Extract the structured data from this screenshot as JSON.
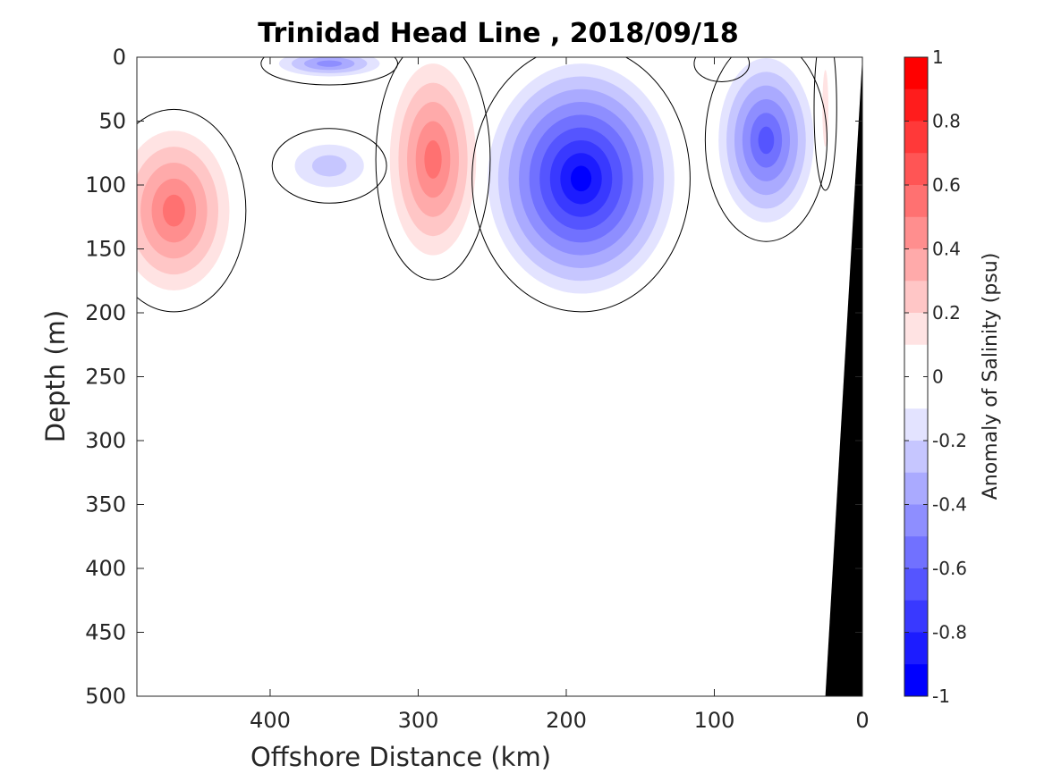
{
  "chart_data": {
    "type": "heatmap",
    "subtype": "filled-contour",
    "title": "Trinidad Head Line , 2018/09/18",
    "xlabel": "Offshore Distance (km)",
    "ylabel": "Depth (m)",
    "xlim": [
      490,
      0
    ],
    "ylim": [
      0,
      500
    ],
    "x_reversed": true,
    "y_reversed": true,
    "xticks": [
      400,
      300,
      200,
      100,
      0
    ],
    "xtick_labels": [
      "400",
      "300",
      "200",
      "100",
      "0"
    ],
    "yticks": [
      0,
      50,
      100,
      150,
      200,
      250,
      300,
      350,
      400,
      450,
      500
    ],
    "ytick_labels": [
      "0",
      "50",
      "100",
      "150",
      "200",
      "250",
      "300",
      "350",
      "400",
      "450",
      "500"
    ],
    "colorbar": {
      "label": "Anomaly of Salinity (psu)",
      "range": [
        -1,
        1
      ],
      "ticks": [
        1,
        0.8,
        0.6,
        0.4,
        0.2,
        0,
        -0.2,
        -0.4,
        -0.6,
        -0.8,
        -1
      ],
      "tick_labels": [
        "1",
        "0.8",
        "0.6",
        "0.4",
        "0.2",
        "0",
        "-0.2",
        "-0.4",
        "-0.6",
        "-0.8",
        "-1"
      ],
      "levels": [
        {
          "from": 0.9,
          "to": 1.0,
          "color": "#ff0000"
        },
        {
          "from": 0.8,
          "to": 0.9,
          "color": "#ff1c1c"
        },
        {
          "from": 0.7,
          "to": 0.8,
          "color": "#ff3939"
        },
        {
          "from": 0.6,
          "to": 0.7,
          "color": "#ff5555"
        },
        {
          "from": 0.5,
          "to": 0.6,
          "color": "#ff7171"
        },
        {
          "from": 0.4,
          "to": 0.5,
          "color": "#ff8e8e"
        },
        {
          "from": 0.3,
          "to": 0.4,
          "color": "#ffaaaa"
        },
        {
          "from": 0.2,
          "to": 0.3,
          "color": "#ffc6c6"
        },
        {
          "from": 0.1,
          "to": 0.2,
          "color": "#ffe3e3"
        },
        {
          "from": 0.0,
          "to": 0.1,
          "color": "#ffffff"
        },
        {
          "from": -0.1,
          "to": 0.0,
          "color": "#ffffff"
        },
        {
          "from": -0.2,
          "to": -0.1,
          "color": "#e3e3ff"
        },
        {
          "from": -0.3,
          "to": -0.2,
          "color": "#c6c6ff"
        },
        {
          "from": -0.4,
          "to": -0.3,
          "color": "#aaaaff"
        },
        {
          "from": -0.5,
          "to": -0.4,
          "color": "#8e8eff"
        },
        {
          "from": -0.6,
          "to": -0.5,
          "color": "#7171ff"
        },
        {
          "from": -0.7,
          "to": -0.6,
          "color": "#5555ff"
        },
        {
          "from": -0.8,
          "to": -0.7,
          "color": "#3939ff"
        },
        {
          "from": -0.9,
          "to": -0.8,
          "color": "#1c1cff"
        },
        {
          "from": -1.0,
          "to": -0.9,
          "color": "#0000ff"
        }
      ]
    },
    "features": [
      {
        "name": "shallow high-salinity anomaly",
        "x": 465,
        "depth": 120,
        "peak": 0.6,
        "x_extent": [
          490,
          400
        ],
        "depth_extent": [
          50,
          200
        ]
      },
      {
        "name": "subsurface high-salinity anomaly",
        "x": 290,
        "depth": 80,
        "peak": 0.6,
        "x_extent": [
          330,
          260
        ],
        "depth_extent": [
          0,
          180
        ]
      },
      {
        "name": "surface low-salinity anomaly",
        "x": 360,
        "depth": 5,
        "peak": -0.5,
        "x_extent": [
          405,
          320
        ],
        "depth_extent": [
          0,
          25
        ]
      },
      {
        "name": "subsurface low-salinity anomaly",
        "x": 360,
        "depth": 85,
        "peak": -0.3,
        "x_extent": [
          405,
          335
        ],
        "depth_extent": [
          60,
          110
        ]
      },
      {
        "name": "core low-salinity anomaly",
        "x": 190,
        "depth": 95,
        "peak": -1.0,
        "x_extent": [
          250,
          110
        ],
        "depth_extent": [
          0,
          200
        ]
      },
      {
        "name": "nearshore low-salinity anomaly",
        "x": 65,
        "depth": 65,
        "peak": -0.7,
        "x_extent": [
          110,
          35
        ],
        "depth_extent": [
          0,
          150
        ]
      },
      {
        "name": "coastal high-salinity anomaly",
        "x": 25,
        "depth": 40,
        "peak": 0.2,
        "x_extent": [
          30,
          22
        ],
        "depth_extent": [
          0,
          120
        ]
      },
      {
        "name": "shallow surface high-salinity patch",
        "x": 95,
        "depth": 5,
        "peak": 0.1,
        "x_extent": [
          110,
          80
        ],
        "depth_extent": [
          0,
          20
        ]
      }
    ],
    "bathymetry": {
      "color": "#000000",
      "x": [
        25,
        0,
        0,
        25
      ],
      "depth": [
        500,
        0,
        500,
        500
      ]
    },
    "zero_contour_color": "#000000",
    "grid": false,
    "colors": {
      "positive": "#ff0000",
      "negative": "#0000ff",
      "background": "#ffffff"
    }
  }
}
